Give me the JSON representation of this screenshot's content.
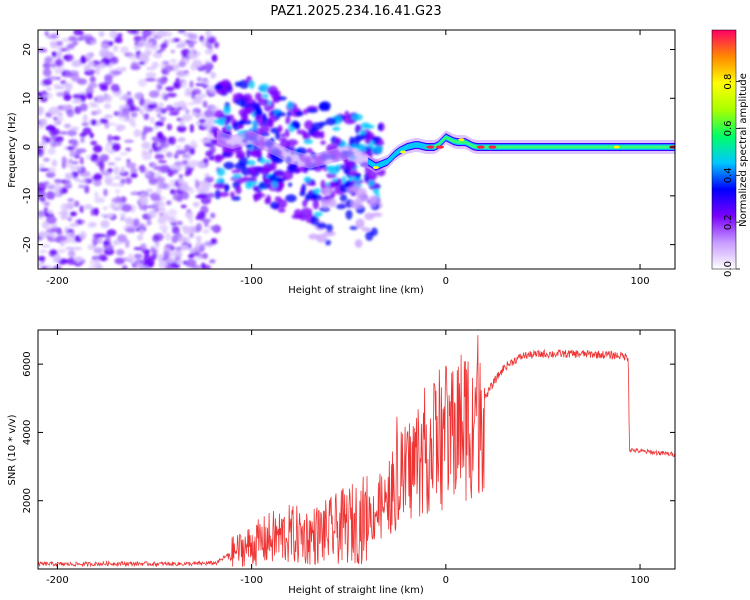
{
  "title": "PAZ1.2025.234.16.41.G23",
  "chart_data": [
    {
      "type": "heatmap",
      "xlabel": "Height of straight line (km)",
      "ylabel": "Frequency (Hz)",
      "xlim": [
        -210,
        118
      ],
      "ylim": [
        -25,
        24
      ],
      "xticks": [
        -200,
        -100,
        0,
        100
      ],
      "yticks": [
        -20,
        -10,
        0,
        10,
        20
      ],
      "noise_region_km": [
        -210,
        -118
      ],
      "frequency_track": {
        "x": [
          -118,
          -110,
          -100,
          -90,
          -80,
          -70,
          -60,
          -50,
          -45,
          -40,
          -36,
          -30,
          -25,
          -20,
          -15,
          -10,
          -5,
          0,
          5,
          10,
          15,
          20,
          25,
          30,
          40,
          60,
          80,
          100,
          118
        ],
        "y": [
          2,
          1,
          2,
          0,
          -2,
          -3,
          -2,
          -1,
          -2,
          -3,
          -4,
          -3,
          -1,
          0,
          0.5,
          0,
          0,
          2,
          1,
          1,
          0,
          0,
          0,
          0,
          0,
          0,
          0,
          0,
          0
        ]
      },
      "colorbar": {
        "label": "Normalized spectral amplitude",
        "range": [
          0,
          1
        ],
        "ticks": [
          "0.0",
          "0.2",
          "0.4",
          "0.6",
          "0.8"
        ],
        "colors": [
          "#ffffff",
          "#c79bff",
          "#7a00ff",
          "#0000ff",
          "#00c8ff",
          "#00ff66",
          "#aaff00",
          "#ffff00",
          "#ff8800",
          "#ff0066"
        ]
      }
    },
    {
      "type": "line",
      "xlabel": "Height of straight line (km)",
      "ylabel": "SNR (10 * v/v)",
      "xlim": [
        -210,
        118
      ],
      "ylim": [
        0,
        7000
      ],
      "xticks": [
        -200,
        -100,
        0,
        100
      ],
      "yticks": [
        2000,
        4000,
        6000
      ],
      "series": [
        {
          "name": "SNR",
          "color": "#ee3333",
          "x": [
            -210,
            -190,
            -170,
            -150,
            -130,
            -118,
            -110,
            -100,
            -90,
            -80,
            -70,
            -60,
            -50,
            -40,
            -30,
            -25,
            -20,
            -15,
            -10,
            -5,
            0,
            5,
            10,
            15,
            20,
            25,
            30,
            35,
            40,
            50,
            60,
            70,
            80,
            90,
            94,
            94.5,
            100,
            110,
            118
          ],
          "y": [
            150,
            140,
            160,
            150,
            150,
            180,
            500,
            700,
            900,
            1000,
            950,
            1100,
            1300,
            1500,
            2000,
            2500,
            2800,
            3200,
            3500,
            3700,
            3900,
            4100,
            4300,
            4500,
            5000,
            5500,
            5900,
            6100,
            6250,
            6300,
            6300,
            6300,
            6280,
            6250,
            6200,
            3500,
            3450,
            3400,
            3350
          ]
        }
      ]
    }
  ]
}
